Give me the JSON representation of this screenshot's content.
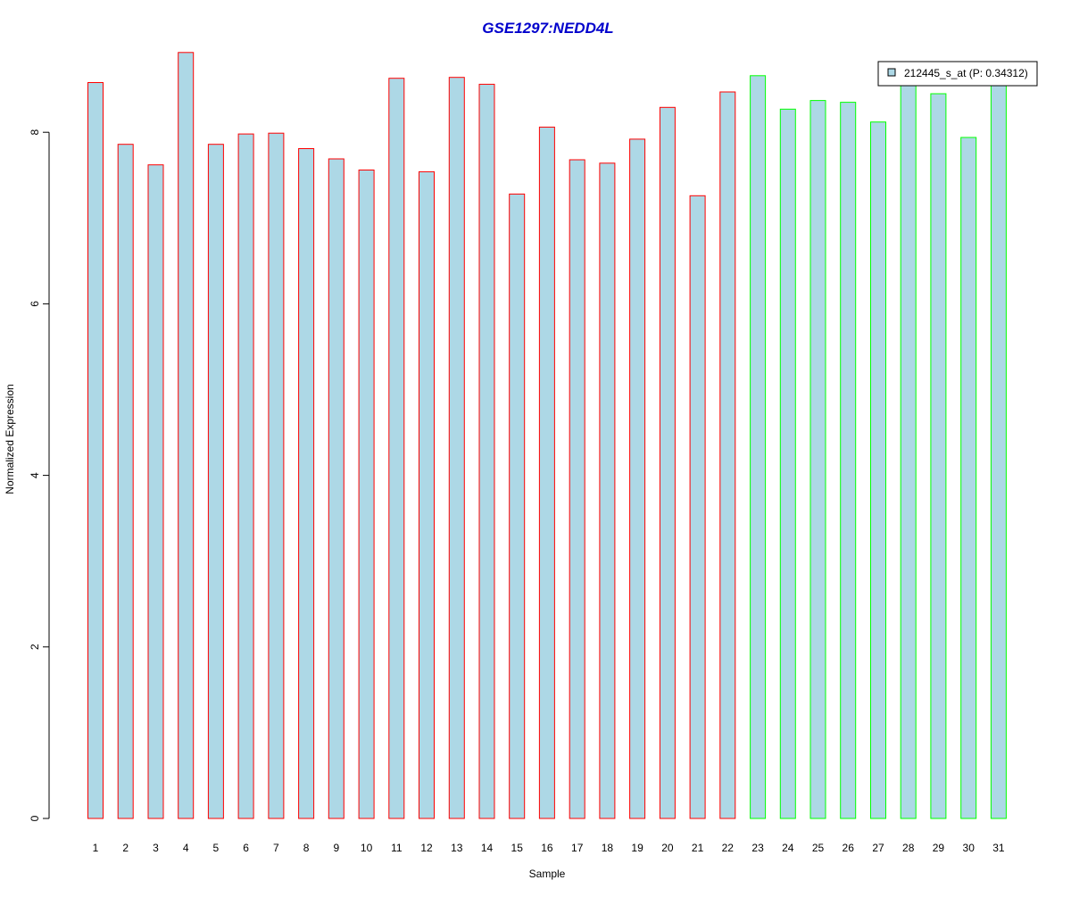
{
  "chart_data": {
    "type": "bar",
    "title": "GSE1297:NEDD4L",
    "xlabel": "Sample",
    "ylabel": "Normalized Expression",
    "categories": [
      "1",
      "2",
      "3",
      "4",
      "5",
      "6",
      "7",
      "8",
      "9",
      "10",
      "11",
      "12",
      "13",
      "14",
      "15",
      "16",
      "17",
      "18",
      "19",
      "20",
      "21",
      "22",
      "23",
      "24",
      "25",
      "26",
      "27",
      "28",
      "29",
      "30",
      "31"
    ],
    "series": [
      {
        "name": "212445_s_at (P: 0.34312)",
        "values": [
          8.58,
          7.86,
          7.62,
          8.93,
          7.86,
          7.98,
          7.99,
          7.81,
          7.69,
          7.56,
          8.63,
          7.54,
          8.64,
          8.56,
          7.28,
          8.06,
          7.68,
          7.64,
          7.92,
          8.29,
          7.26,
          8.47,
          8.66,
          8.27,
          8.37,
          8.35,
          8.12,
          8.58,
          8.45,
          7.94,
          8.55
        ]
      }
    ],
    "group_border_colors": [
      "#ff0000",
      "#ff0000",
      "#ff0000",
      "#ff0000",
      "#ff0000",
      "#ff0000",
      "#ff0000",
      "#ff0000",
      "#ff0000",
      "#ff0000",
      "#ff0000",
      "#ff0000",
      "#ff0000",
      "#ff0000",
      "#ff0000",
      "#ff0000",
      "#ff0000",
      "#ff0000",
      "#ff0000",
      "#ff0000",
      "#ff0000",
      "#ff0000",
      "#00ff00",
      "#00ff00",
      "#00ff00",
      "#00ff00",
      "#00ff00",
      "#00ff00",
      "#00ff00",
      "#00ff00",
      "#00ff00"
    ],
    "bar_fill": "#add8e6",
    "title_color": "#0000cc",
    "ylim": [
      0,
      9
    ],
    "yticks": [
      0,
      2,
      4,
      6,
      8
    ],
    "grid": false,
    "legend_position": "top-right"
  }
}
